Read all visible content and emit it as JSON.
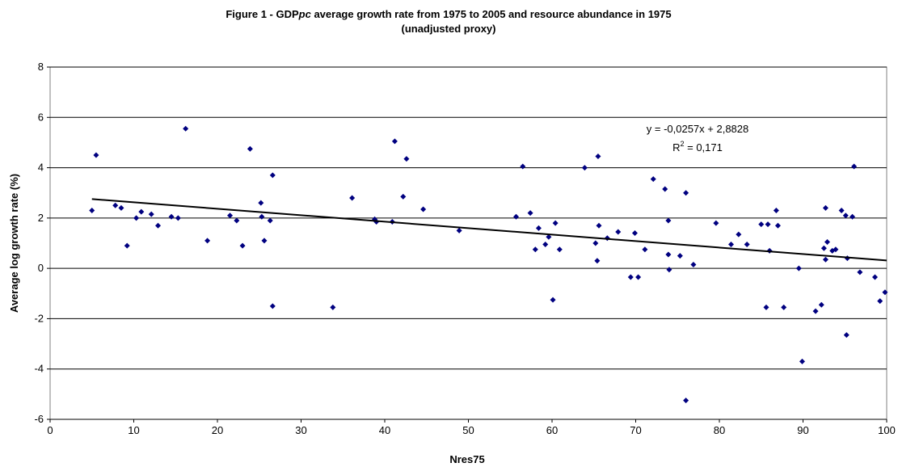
{
  "chart_data": {
    "type": "scatter",
    "title": [
      "Figure 1 - GDP",
      "pc",
      " average growth rate from 1975 to 2005 and resource abundance in 1975"
    ],
    "subtitle": "(unadjusted proxy)",
    "x_label": "Nres75",
    "y_label": "Average log growth rate (%)",
    "xlim": [
      0,
      100
    ],
    "xticks": [
      0,
      10,
      20,
      30,
      40,
      50,
      60,
      70,
      80,
      90,
      100
    ],
    "ylim": [
      -6,
      8
    ],
    "yticks": [
      -6,
      -4,
      -2,
      0,
      2,
      4,
      6,
      8
    ],
    "grid": true,
    "series": [
      {
        "color": "#000080",
        "x": [
          5.0,
          5.5,
          7.8,
          8.5,
          9.2,
          10.3,
          10.9,
          12.1,
          12.9,
          14.5,
          15.3,
          16.2,
          18.8,
          21.5,
          22.3,
          23.0,
          23.9,
          25.2,
          25.3,
          25.6,
          26.3,
          26.6,
          26.6,
          33.8,
          36.1,
          38.8,
          39.0,
          40.9,
          41.2,
          42.2,
          42.6,
          44.6,
          48.9,
          55.7,
          56.5,
          57.4,
          58.0,
          58.4,
          59.2,
          59.6,
          60.1,
          60.4,
          60.9,
          63.9,
          65.2,
          65.4,
          65.5,
          65.6,
          66.6,
          67.9,
          69.4,
          69.9,
          70.3,
          71.1,
          72.1,
          73.5,
          73.9,
          73.9,
          74.0,
          75.3,
          76.0,
          76.0,
          76.9,
          79.6,
          81.4,
          82.3,
          83.3,
          85.0,
          85.6,
          85.8,
          86.0,
          86.8,
          87.0,
          87.7,
          89.5,
          89.9,
          91.5,
          92.2,
          92.5,
          92.7,
          92.7,
          92.9,
          93.5,
          93.9,
          94.6,
          95.1,
          95.2,
          95.3,
          95.9,
          96.1,
          96.8,
          98.6,
          99.2,
          99.8
        ],
        "values": [
          2.3,
          4.5,
          2.5,
          2.4,
          0.9,
          2.0,
          2.25,
          2.15,
          1.7,
          2.05,
          2.0,
          5.55,
          1.1,
          2.1,
          1.9,
          0.9,
          4.75,
          2.6,
          2.05,
          1.1,
          1.9,
          3.7,
          -1.5,
          -1.55,
          2.8,
          1.95,
          1.85,
          1.85,
          5.05,
          2.85,
          4.35,
          2.35,
          1.5,
          2.05,
          4.05,
          2.2,
          0.75,
          1.6,
          0.95,
          1.25,
          -1.25,
          1.8,
          0.75,
          4.0,
          1.0,
          0.3,
          4.45,
          1.7,
          1.2,
          1.45,
          -0.35,
          1.4,
          -0.35,
          0.75,
          3.55,
          3.15,
          1.9,
          0.55,
          -0.05,
          0.5,
          3.0,
          -5.25,
          0.15,
          1.8,
          0.95,
          1.35,
          0.95,
          1.75,
          -1.55,
          1.75,
          0.7,
          2.3,
          1.7,
          -1.55,
          0.0,
          -3.7,
          -1.7,
          -1.45,
          0.8,
          2.4,
          0.35,
          1.05,
          0.7,
          0.75,
          2.3,
          2.1,
          -2.65,
          0.4,
          2.05,
          4.05,
          -0.15,
          -0.35,
          -1.3,
          -0.95
        ]
      }
    ],
    "trendline": {
      "slope": -0.0257,
      "intercept": 2.8828,
      "xlim": [
        5,
        100
      ],
      "color": "#000000",
      "label": "y = -0,0257x + 2,8828",
      "r2": 0.171,
      "r2_label": [
        "R",
        "2",
        " = 0,171"
      ]
    }
  }
}
